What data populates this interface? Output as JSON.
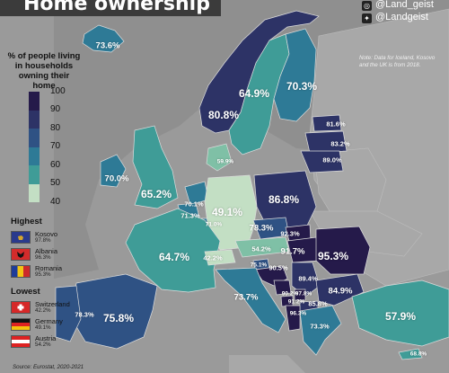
{
  "header": {
    "title": "Home ownership",
    "social": [
      {
        "icon": "instagram-icon",
        "handle": "@Land_geist"
      },
      {
        "icon": "twitter-icon",
        "handle": "@Landgeist"
      }
    ],
    "note": "Note: Data for Iceland, Kosovo and the UK is from 2018."
  },
  "legend": {
    "title": "% of people living in households owning their home",
    "ticks": [
      "100",
      "90",
      "80",
      "70",
      "60",
      "50",
      "40"
    ],
    "colors": [
      "#251a4a",
      "#2d3366",
      "#2f5284",
      "#2e7a96",
      "#3f9c97",
      "#7fc0a6",
      "#c3dfc4"
    ],
    "no_data_color": "#9a9a9a"
  },
  "highest": {
    "heading": "Highest",
    "items": [
      {
        "country": "Kosovo",
        "value": "97.8%",
        "flag": "kosovo-flag"
      },
      {
        "country": "Albania",
        "value": "96.3%",
        "flag": "albania-flag"
      },
      {
        "country": "Romania",
        "value": "95.3%",
        "flag": "romania-flag"
      }
    ]
  },
  "lowest": {
    "heading": "Lowest",
    "items": [
      {
        "country": "Switzerland",
        "value": "42.2%",
        "flag": "switzerland-flag"
      },
      {
        "country": "Germany",
        "value": "49.1%",
        "flag": "germany-flag"
      },
      {
        "country": "Austria",
        "value": "54.2%",
        "flag": "austria-flag"
      }
    ]
  },
  "source": "Source: Eurostat, 2020-2021",
  "countries": [
    {
      "id": "iceland",
      "value": "73.6%",
      "fill": "#2e7a96"
    },
    {
      "id": "norway",
      "value": "80.8%",
      "fill": "#2d3366"
    },
    {
      "id": "sweden",
      "value": "64.9%",
      "fill": "#3f9c97"
    },
    {
      "id": "finland",
      "value": "70.3%",
      "fill": "#2e7a96"
    },
    {
      "id": "estonia",
      "value": "81.6%",
      "fill": "#2d3366"
    },
    {
      "id": "latvia",
      "value": "83.2%",
      "fill": "#2d3366"
    },
    {
      "id": "lithuania",
      "value": "89.0%",
      "fill": "#2d3366"
    },
    {
      "id": "denmark",
      "value": "59.9%",
      "fill": "#7fc0a6"
    },
    {
      "id": "ireland",
      "value": "70.0%",
      "fill": "#2e7a96"
    },
    {
      "id": "united-kingdom",
      "value": "65.2%",
      "fill": "#3f9c97"
    },
    {
      "id": "netherlands",
      "value": "70.1%",
      "fill": "#2e7a96"
    },
    {
      "id": "belgium",
      "value": "71.3%",
      "fill": "#2e7a96"
    },
    {
      "id": "luxembourg",
      "value": "71.0%",
      "fill": "#2e7a96"
    },
    {
      "id": "germany",
      "value": "49.1%",
      "fill": "#c3dfc4"
    },
    {
      "id": "poland",
      "value": "86.8%",
      "fill": "#2d3366"
    },
    {
      "id": "czechia",
      "value": "78.3%",
      "fill": "#2f5284"
    },
    {
      "id": "slovakia",
      "value": "92.3%",
      "fill": "#251a4a"
    },
    {
      "id": "austria",
      "value": "54.2%",
      "fill": "#7fc0a6"
    },
    {
      "id": "hungary",
      "value": "91.7%",
      "fill": "#251a4a"
    },
    {
      "id": "romania",
      "value": "95.3%",
      "fill": "#251a4a"
    },
    {
      "id": "france",
      "value": "64.7%",
      "fill": "#3f9c97"
    },
    {
      "id": "switzerland",
      "value": "42.2%",
      "fill": "#c3dfc4"
    },
    {
      "id": "slovenia",
      "value": "75.1%",
      "fill": "#2f5284"
    },
    {
      "id": "croatia",
      "value": "90.5%",
      "fill": "#251a4a"
    },
    {
      "id": "serbia",
      "value": "89.4%",
      "fill": "#2d3366"
    },
    {
      "id": "bulgaria",
      "value": "84.9%",
      "fill": "#2d3366"
    },
    {
      "id": "bosnia",
      "value": "90.2%",
      "fill": "#251a4a"
    },
    {
      "id": "montenegro",
      "value": "91.2%",
      "fill": "#251a4a"
    },
    {
      "id": "kosovo",
      "value": "97.8%",
      "fill": "#251a4a"
    },
    {
      "id": "north-macedonia",
      "value": "85.8%",
      "fill": "#2d3366"
    },
    {
      "id": "albania",
      "value": "96.3%",
      "fill": "#251a4a"
    },
    {
      "id": "italy",
      "value": "73.7%",
      "fill": "#2e7a96"
    },
    {
      "id": "greece",
      "value": "73.3%",
      "fill": "#2e7a96"
    },
    {
      "id": "spain",
      "value": "75.8%",
      "fill": "#2f5284"
    },
    {
      "id": "portugal",
      "value": "78.3%",
      "fill": "#2f5284"
    },
    {
      "id": "turkey",
      "value": "57.9%",
      "fill": "#3f9c97"
    },
    {
      "id": "cyprus",
      "value": "68.8%",
      "fill": "#3f9c97"
    }
  ]
}
